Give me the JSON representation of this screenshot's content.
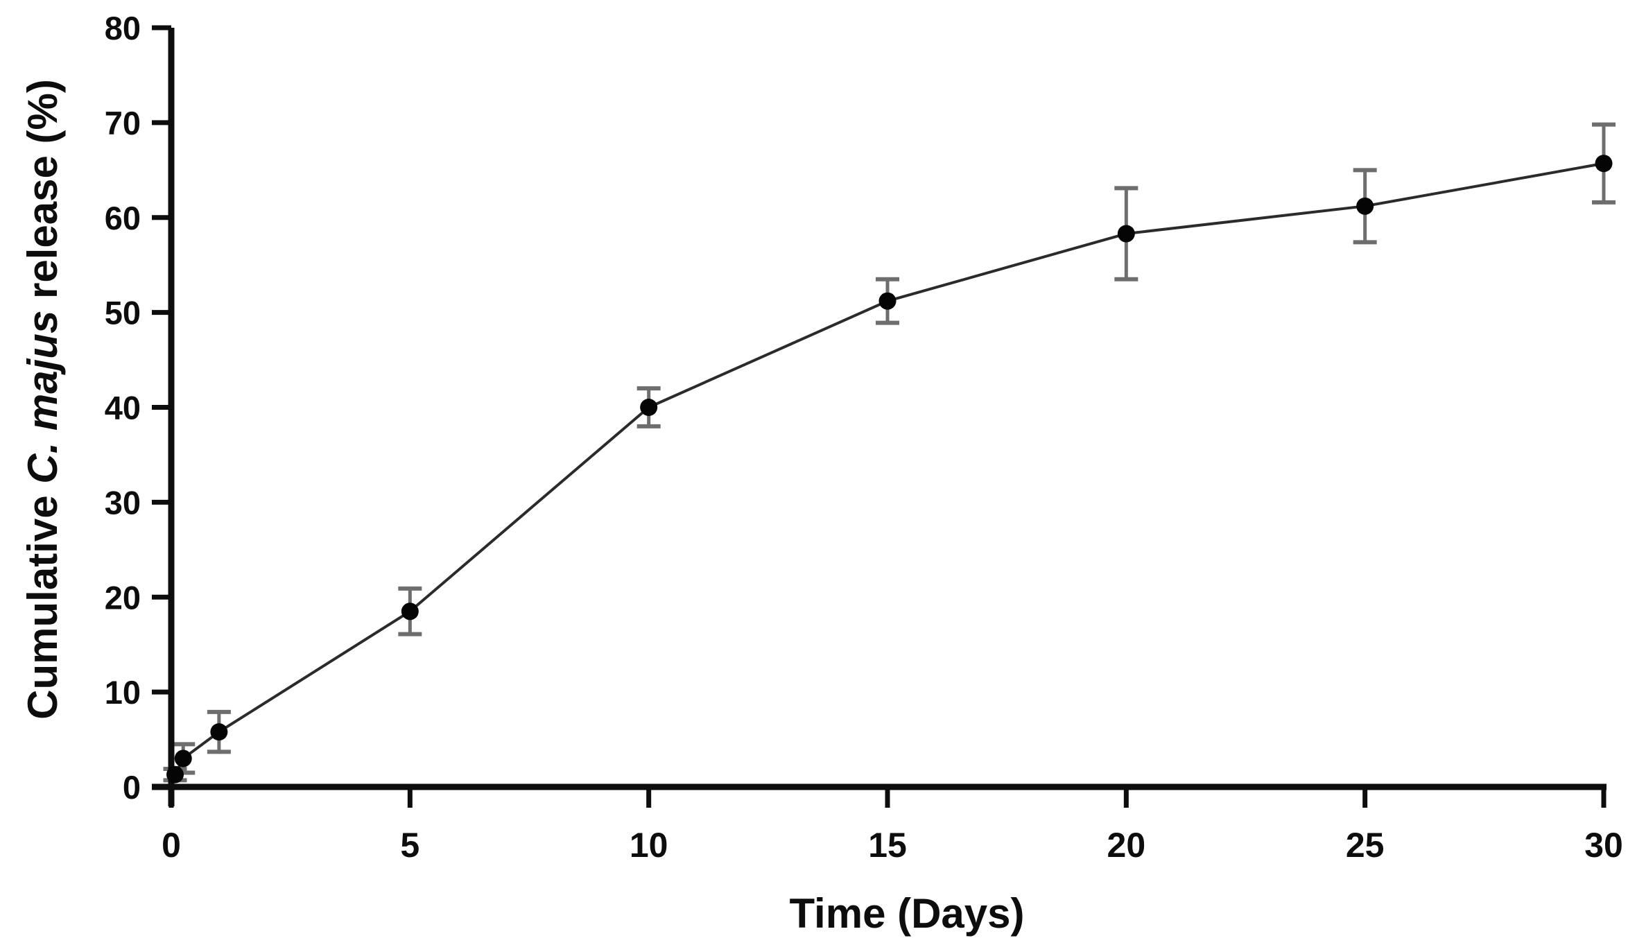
{
  "chart_data": {
    "type": "line",
    "title": "",
    "xlabel": "Time (Days)",
    "ylabel": {
      "prefix": "Cumulative ",
      "italic": "C. majus",
      "suffix": " release (%)",
      "full": "Cumulative C. majus release (%)"
    },
    "series": [
      {
        "name": "Cumulative C. majus release",
        "x": [
          0.08,
          0.25,
          1,
          5,
          10,
          15,
          20,
          25,
          30
        ],
        "y": [
          1.3,
          3.0,
          5.8,
          18.5,
          40.0,
          51.2,
          58.3,
          61.2,
          65.7
        ],
        "error": [
          0.6,
          1.5,
          2.1,
          2.4,
          2.0,
          2.3,
          4.8,
          3.8,
          4.1
        ]
      }
    ],
    "xlim": [
      0,
      30
    ],
    "ylim": [
      0,
      80
    ],
    "x_ticks": [
      0,
      5,
      10,
      15,
      20,
      25,
      30
    ],
    "y_ticks": [
      0,
      10,
      20,
      30,
      40,
      50,
      60,
      70,
      80
    ],
    "grid": false,
    "legend": false,
    "marker": "filled-circle",
    "colors": {
      "axis": "#0d0d0d",
      "line": "#2b2b2b",
      "marker": "#050505",
      "error_bar": "#6e6e6e",
      "background": "#ffffff"
    }
  }
}
